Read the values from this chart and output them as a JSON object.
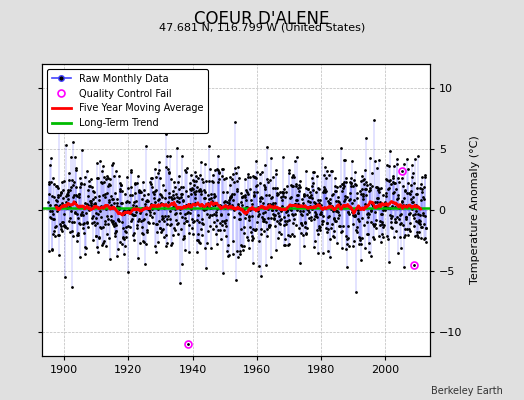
{
  "title": "COEUR D'ALENE",
  "subtitle": "47.681 N, 116.799 W (United States)",
  "ylabel": "Temperature Anomaly (°C)",
  "credit": "Berkeley Earth",
  "xlim": [
    1893,
    2014
  ],
  "ylim": [
    -12,
    12
  ],
  "yticks": [
    -10,
    -5,
    0,
    5,
    10
  ],
  "xticks": [
    1900,
    1920,
    1940,
    1960,
    1980,
    2000
  ],
  "bg_color": "#e0e0e0",
  "plot_bg_color": "#ffffff",
  "raw_line_color": "#4444ff",
  "raw_dot_color": "#000000",
  "ma_color": "#ff0000",
  "trend_color": "#00bb00",
  "qc_color": "#ff00ff",
  "seed": 17,
  "n_months": 1416,
  "start_year": 1895.0,
  "noise_std": 1.9,
  "ma_window": 60,
  "qc_fail_year_1": 1938.5,
  "qc_fail_val_1": -11.0,
  "qc_fail_year_2": 2005.5,
  "qc_fail_val_2": 3.2,
  "qc_fail_year_3": 2009.0,
  "qc_fail_val_3": -4.5
}
